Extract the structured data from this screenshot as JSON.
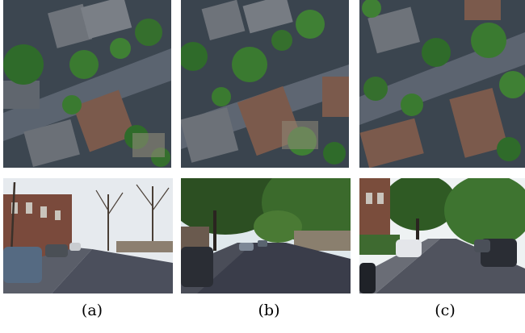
{
  "figure": {
    "captions": [
      "(a)",
      "(b)",
      "(c)"
    ],
    "panels": [
      {
        "id": "a",
        "aerial": "aerial-overhead-residential-neighborhood",
        "street": "street-level-tree-lined-road-winter"
      },
      {
        "id": "b",
        "aerial": "aerial-overhead-residential-neighborhood",
        "street": "street-level-tree-lined-road-shade"
      },
      {
        "id": "c",
        "aerial": "aerial-overhead-residential-neighborhood",
        "street": "street-level-tree-lined-road-summer"
      }
    ]
  },
  "colors": {
    "rooftop": "#4f5660",
    "tree": "#2f6b2a",
    "road": "#3a3f4a",
    "sky": "#e9eef2"
  }
}
